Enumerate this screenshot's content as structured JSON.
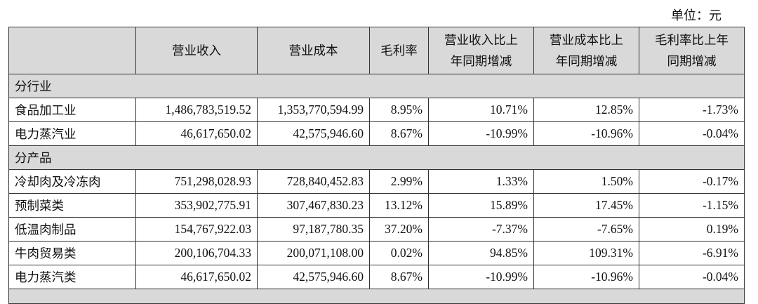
{
  "unit_label": "单位：元",
  "headers": [
    "",
    "营业收入",
    "营业成本",
    "毛利率",
    "营业收入比上年同期增减",
    "营业成本比上年同期增减",
    "毛利率比上年同期增减"
  ],
  "header_lines": {
    "h4": [
      "营业收入比上",
      "年同期增减"
    ],
    "h5": [
      "营业成本比上",
      "年同期增减"
    ],
    "h6": [
      "毛利率比上年",
      "同期增减"
    ]
  },
  "groups": [
    {
      "label": "分行业",
      "rows": [
        [
          "食品加工业",
          "1,486,783,519.52",
          "1,353,770,594.99",
          "8.95%",
          "10.71%",
          "12.85%",
          "-1.73%"
        ],
        [
          "电力蒸汽业",
          "46,617,650.02",
          "42,575,946.60",
          "8.67%",
          "-10.99%",
          "-10.96%",
          "-0.04%"
        ]
      ]
    },
    {
      "label": "分产品",
      "rows": [
        [
          "冷却肉及冷冻肉",
          "751,298,028.93",
          "728,840,452.83",
          "2.99%",
          "1.33%",
          "1.50%",
          "-0.17%"
        ],
        [
          "预制菜类",
          "353,902,775.91",
          "307,467,830.23",
          "13.12%",
          "15.89%",
          "17.45%",
          "-1.15%"
        ],
        [
          "低温肉制品",
          "154,767,922.03",
          "97,187,780.35",
          "37.20%",
          "-7.37%",
          "-7.65%",
          "0.19%"
        ],
        [
          "牛肉贸易类",
          "200,106,704.33",
          "200,071,108.00",
          "0.02%",
          "94.85%",
          "109.31%",
          "-6.91%"
        ],
        [
          "电力蒸汽类",
          "46,617,650.02",
          "42,575,946.60",
          "8.67%",
          "-10.99%",
          "-10.96%",
          "-0.04%"
        ]
      ]
    }
  ]
}
